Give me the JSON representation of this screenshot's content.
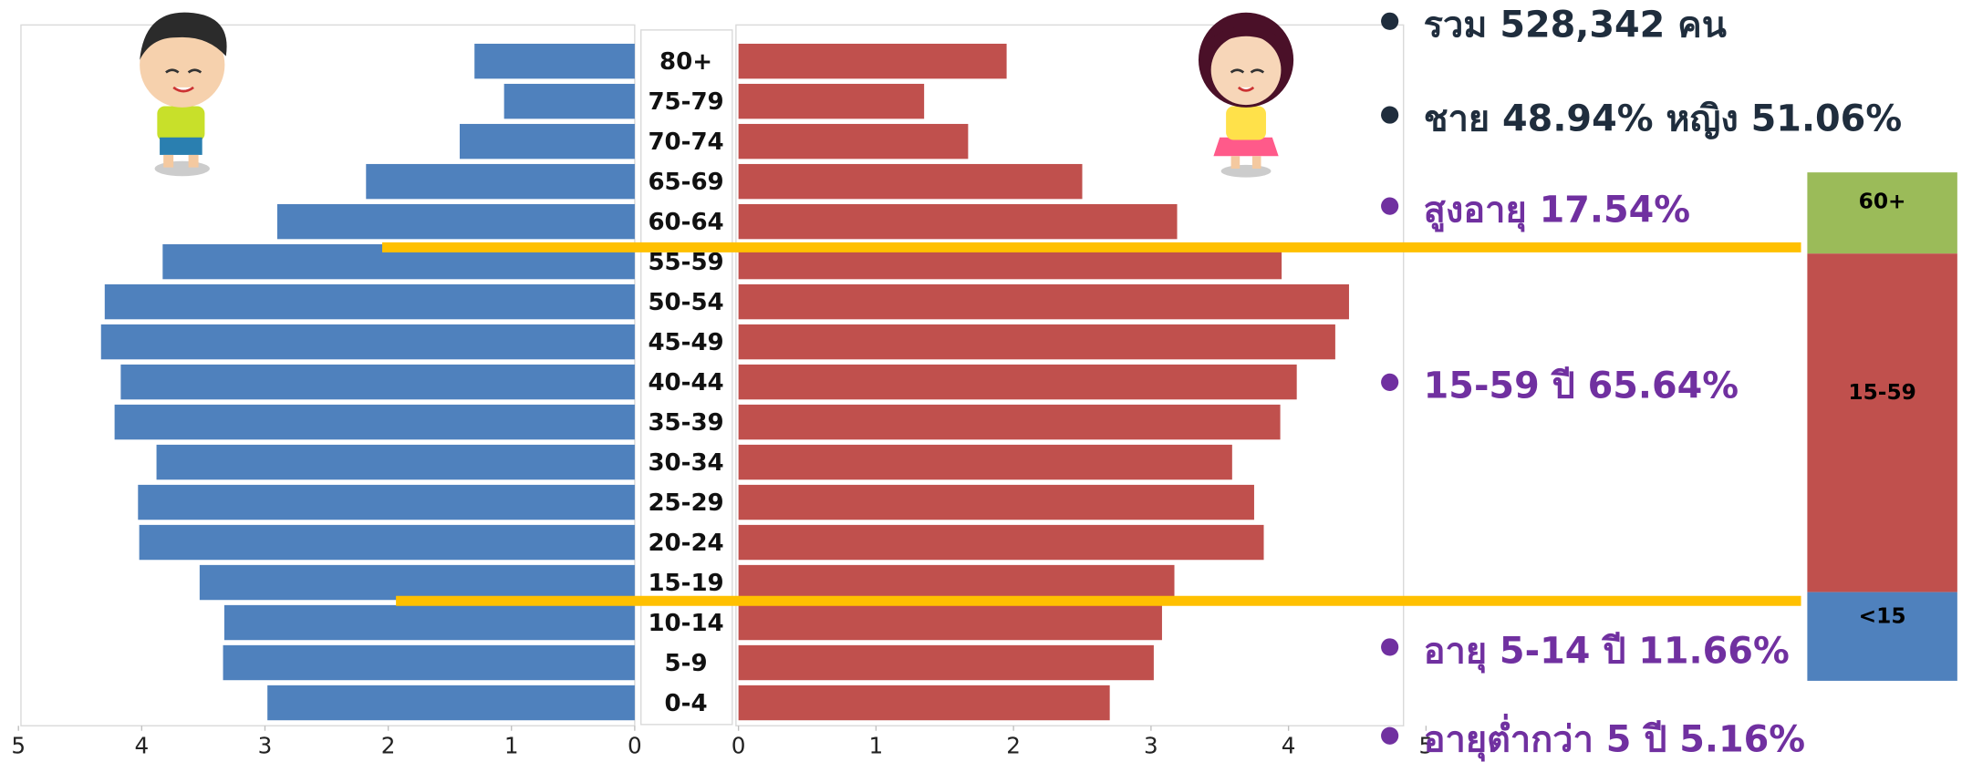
{
  "chart_data": {
    "type": "pyramid",
    "categories": [
      "0-4",
      "5-9",
      "10-14",
      "15-19",
      "20-24",
      "25-29",
      "30-34",
      "35-39",
      "40-44",
      "45-49",
      "50-54",
      "55-59",
      "60-64",
      "65-69",
      "70-74",
      "75-79",
      "80+"
    ],
    "series": [
      {
        "color": "#4f81bd",
        "side": "left",
        "values": [
          2.98,
          3.34,
          3.33,
          3.53,
          4.02,
          4.03,
          3.88,
          4.22,
          4.17,
          4.33,
          4.3,
          3.83,
          2.9,
          2.18,
          1.42,
          1.06,
          1.3
        ]
      },
      {
        "color": "#c0504d",
        "side": "right",
        "values": [
          2.7,
          3.02,
          3.08,
          3.17,
          3.82,
          3.75,
          3.59,
          3.94,
          4.06,
          4.34,
          4.44,
          3.95,
          3.19,
          2.5,
          1.67,
          1.35,
          1.95
        ]
      }
    ],
    "xlim": [
      0,
      5
    ],
    "xticks": [
      0,
      1,
      2,
      3,
      4,
      5
    ],
    "annotations": [
      {
        "text": "รวม 528,342 คน",
        "color": "#1f2d3d"
      },
      {
        "text": "ชาย 48.94% หญิง 51.06%",
        "color": "#1f2d3d"
      },
      {
        "text": "สูงอายุ 17.54%",
        "color": "#7030a0"
      },
      {
        "text": "15-59 ปี   65.64%",
        "color": "#7030a0"
      },
      {
        "text": "อายุ 5-14 ปี 11.66%",
        "color": "#7030a0"
      },
      {
        "text": "อายุต่ำกว่า 5 ปี  5.16%",
        "color": "#7030a0"
      }
    ],
    "age_groups": [
      {
        "label": "60+",
        "color": "#9bbb59"
      },
      {
        "label": "15-59",
        "color": "#c0504d"
      },
      {
        "label": "<15",
        "color": "#4f81bd"
      }
    ]
  }
}
